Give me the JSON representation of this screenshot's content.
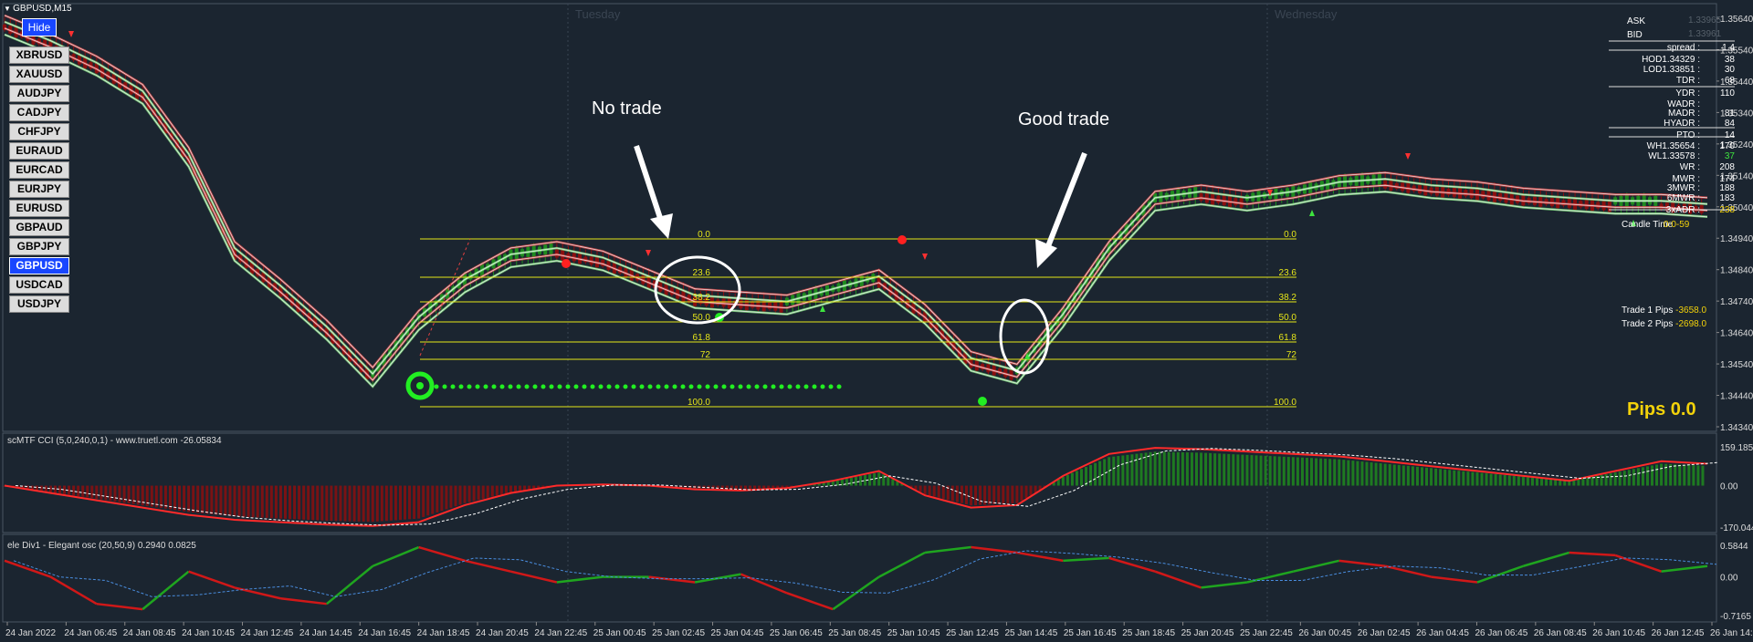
{
  "window": {
    "symbol_title": "GBPUSD,M15",
    "hide_label": "Hide"
  },
  "symbols": [
    "XBRUSD",
    "XAUUSD",
    "AUDJPY",
    "CADJPY",
    "CHFJPY",
    "EURAUD",
    "EURCAD",
    "EURJPY",
    "EURUSD",
    "GBPAUD",
    "GBPJPY",
    "GBPUSD",
    "USDCAD",
    "USDJPY"
  ],
  "active_symbol": "GBPUSD",
  "day_labels": [
    "Tuesday",
    "Wednesday"
  ],
  "annotations": {
    "no_trade": "No trade",
    "good_trade": "Good trade"
  },
  "fib_levels_left": [
    "0.0",
    "23.6",
    "38.2",
    "50.0",
    "61.8",
    "72",
    "100.0"
  ],
  "fib_levels_right": [
    "0.0",
    "23.6",
    "38.2",
    "50.0",
    "61.8",
    "72",
    "100.0"
  ],
  "info_panel": {
    "ask_label": "ASK",
    "ask_value": "1.33965",
    "bid_label": "BID",
    "bid_value": "1.33961",
    "rows": [
      {
        "k": "spread :",
        "v": "1.4"
      },
      {
        "k": "HOD1.34329 :",
        "v": "38"
      },
      {
        "k": "LOD1.33851 :",
        "v": "30"
      },
      {
        "k": "TDR :",
        "v": "68"
      },
      {
        "k": "YDR :",
        "v": "110"
      },
      {
        "k": "WADR :",
        "v": ""
      },
      {
        "k": "MADR :",
        "v": "81"
      },
      {
        "k": "HYADR :",
        "v": "84"
      },
      {
        "k": "PTO :",
        "v": "14"
      },
      {
        "k": "WH1.35654 :",
        "v": "170"
      },
      {
        "k": "WL1.33578 :",
        "v": "37"
      },
      {
        "k": "WR :",
        "v": "208"
      },
      {
        "k": "MWR :",
        "v": "174"
      },
      {
        "k": "3MWR :",
        "v": "188"
      },
      {
        "k": "6MWR :",
        "v": "183"
      },
      {
        "k": "3xADR :",
        "v": "238"
      }
    ],
    "candle_time_label": "Candle Time",
    "candle_time_value": "0:0-59",
    "trade1_label": "Trade 1 Pips",
    "trade1_value": "-3658.0",
    "trade2_label": "Trade 2 Pips",
    "trade2_value": "-2698.0",
    "pips_label": "Pips 0.0"
  },
  "pane_titles": {
    "cci": "scMTF CCI (5,0,240,0,1) - www.truetl.com -26.05834",
    "osc": "ele Div1 - Elegant osc (20,50,9) 0.2940 0.0825"
  },
  "colors": {
    "background": "#1b2530",
    "bull": "#1f8a1f",
    "bear": "#8b0f0f",
    "fib": "#e6e619",
    "band_green": "#7cd67c",
    "band_red": "#d04848",
    "marker": "#22ee22"
  },
  "chart_data": [
    {
      "type": "line",
      "title": "GBPUSD,M15",
      "ylim": [
        1.3434,
        1.3564
      ],
      "y_ticks": [
        "1.35640",
        "1.35540",
        "1.35440",
        "1.35340",
        "1.35240",
        "1.35140",
        "1.35040",
        "1.34940",
        "1.34840",
        "1.34740",
        "1.34640",
        "1.34540",
        "1.34440",
        "1.34340"
      ],
      "x_ticks": [
        "24 Jan 2022",
        "24 Jan 06:45",
        "24 Jan 08:45",
        "24 Jan 10:45",
        "24 Jan 12:45",
        "24 Jan 14:45",
        "24 Jan 16:45",
        "24 Jan 18:45",
        "24 Jan 20:45",
        "24 Jan 22:45",
        "25 Jan 00:45",
        "25 Jan 02:45",
        "25 Jan 04:45",
        "25 Jan 06:45",
        "25 Jan 08:45",
        "25 Jan 10:45",
        "25 Jan 12:45",
        "25 Jan 14:45",
        "25 Jan 16:45",
        "25 Jan 18:45",
        "25 Jan 20:45",
        "25 Jan 22:45",
        "26 Jan 00:45",
        "26 Jan 02:45",
        "26 Jan 04:45",
        "26 Jan 06:45",
        "26 Jan 08:45",
        "26 Jan 10:45",
        "26 Jan 12:45",
        "26 Jan 14:45"
      ],
      "series": [
        {
          "values": [
            1.3562,
            1.3556,
            1.3549,
            1.354,
            1.352,
            1.349,
            1.3478,
            1.3465,
            1.345,
            1.3468,
            1.348,
            1.3488,
            1.349,
            1.3487,
            1.3481,
            1.3475,
            1.3474,
            1.3473,
            1.3477,
            1.3481,
            1.347,
            1.3455,
            1.3451,
            1.3469,
            1.349,
            1.3506,
            1.3508,
            1.3506,
            1.3508,
            1.3511,
            1.3512,
            1.351,
            1.3509,
            1.3507,
            1.3506,
            1.3505,
            1.3505,
            1.3504
          ]
        }
      ],
      "fib_retracement": {
        "levels": [
          0.0,
          23.6,
          38.2,
          50.0,
          61.8,
          72,
          100.0
        ]
      }
    },
    {
      "type": "line",
      "title": "scMTF CCI (5,0,240,0,1) - www.truetl.com -26.05834",
      "ylim": [
        -170.0445,
        159.1855
      ],
      "y_ticks": [
        "159.1855",
        "0.00",
        "-170.0445"
      ],
      "series": [
        {
          "values": [
            0,
            -30,
            -60,
            -90,
            -120,
            -140,
            -150,
            -160,
            -165,
            -150,
            -80,
            -30,
            0,
            5,
            0,
            -15,
            -20,
            -10,
            20,
            60,
            -40,
            -90,
            -80,
            40,
            130,
            155,
            150,
            140,
            130,
            120,
            100,
            80,
            60,
            40,
            20,
            60,
            100,
            90
          ]
        }
      ]
    },
    {
      "type": "line",
      "title": "ele Div1 - Elegant osc (20,50,9) 0.2940 0.0825",
      "y_ticks": [
        "0.5844",
        "0.00",
        "-0.7165"
      ],
      "ylim": [
        -0.7165,
        0.5844
      ],
      "series": [
        {
          "values": [
            0.3,
            0,
            -0.5,
            -0.6,
            0.1,
            -0.2,
            -0.4,
            -0.5,
            0.2,
            0.55,
            0.3,
            0.1,
            -0.1,
            0.0,
            0.0,
            -0.1,
            0.05,
            -0.3,
            -0.6,
            0.0,
            0.45,
            0.55,
            0.45,
            0.3,
            0.35,
            0.1,
            -0.2,
            -0.1,
            0.1,
            0.3,
            0.2,
            0.0,
            -0.1,
            0.2,
            0.45,
            0.4,
            0.1,
            0.2
          ]
        }
      ]
    }
  ]
}
